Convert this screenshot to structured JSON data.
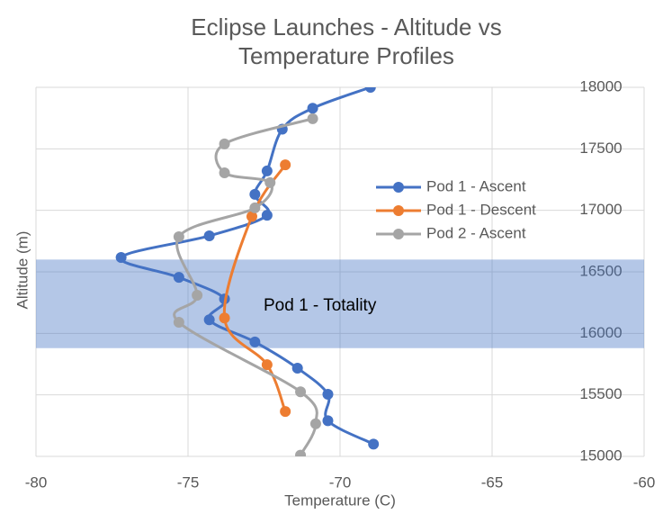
{
  "chart_data": {
    "type": "scatter-smooth",
    "title": "Eclipse Launches - Altitude vs Temperature Profiles",
    "x_label": "Temperature (C)",
    "y_label": "Altitude (m)",
    "xlim": [
      -80,
      -60
    ],
    "xticks": [
      -80,
      -75,
      -70,
      -65,
      -60
    ],
    "ylim": [
      15000,
      18000
    ],
    "yticks": [
      15000,
      15500,
      16000,
      16500,
      17000,
      17500,
      18000
    ],
    "grid": true,
    "legend": "right",
    "band": {
      "label": "Pod 1 - Totality",
      "y": [
        15880,
        16600
      ],
      "color": "#4472c4"
    },
    "series": [
      {
        "name": "Pod 1 - Ascent",
        "color": "#4472c4",
        "x": [
          -68.9,
          -70.4,
          -70.4,
          -71.4,
          -72.8,
          -74.3,
          -73.8,
          -75.3,
          -77.2,
          -74.3,
          -72.4,
          -72.8,
          -72.4,
          -71.9,
          -70.9,
          -69.0
        ],
        "values": [
          15100,
          15290,
          15505,
          15717,
          15930,
          16110,
          16280,
          16455,
          16617,
          16793,
          16960,
          17130,
          17320,
          17660,
          17830,
          18000
        ]
      },
      {
        "name": "Pod 1 - Descent",
        "color": "#ed7d31",
        "x": [
          -71.8,
          -72.4,
          -73.8,
          -72.9,
          -71.8
        ],
        "values": [
          15365,
          15745,
          16125,
          16950,
          17370
        ]
      },
      {
        "name": "Pod 2 - Ascent",
        "color": "#a5a5a5",
        "x": [
          -71.3,
          -70.8,
          -71.3,
          -75.3,
          -74.7,
          -75.3,
          -72.8,
          -72.3,
          -73.8,
          -73.8,
          -70.9
        ],
        "values": [
          15010,
          15265,
          15525,
          16090,
          16310,
          16785,
          17020,
          17225,
          17305,
          17540,
          17745
        ]
      }
    ]
  }
}
